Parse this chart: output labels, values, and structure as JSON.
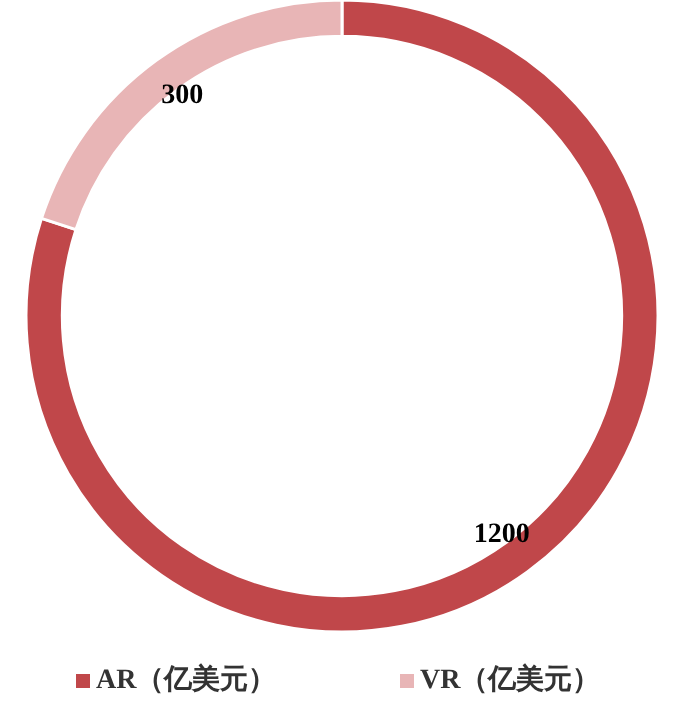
{
  "chart_data": {
    "type": "donut",
    "categories": [
      "AR（亿美元）",
      "VR（亿美元）"
    ],
    "values": [
      1200,
      300
    ],
    "colors": [
      "#c0474a",
      "#e8b5b6"
    ],
    "data_labels": true,
    "legend": "bottom"
  }
}
